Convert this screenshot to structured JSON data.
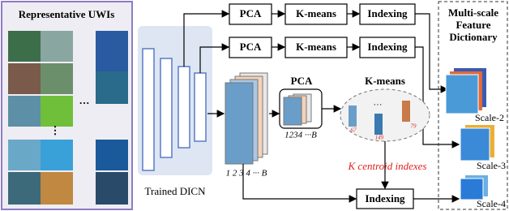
{
  "left_panel": {
    "title": "Representative UWIs",
    "ellipsis_h": "···",
    "ellipsis_v": "⋮"
  },
  "network": {
    "label": "Trained DICN"
  },
  "rows": [
    {
      "steps": [
        "PCA",
        "K-means",
        "Indexing"
      ]
    },
    {
      "steps": [
        "PCA",
        "K-means",
        "Indexing"
      ]
    }
  ],
  "bottom": {
    "pca": "PCA",
    "kmeans": "K-means",
    "indexing": "Indexing",
    "feature_axis": "1 2 3 4 ··· B",
    "pca_axis": "1234 ···B",
    "centroid_note": "K centroid indexes",
    "cluster_dots": "···",
    "cluster_ids": [
      "67",
      "149",
      "79"
    ]
  },
  "dictionary": {
    "title": "Multi-scale Feature Dictionary",
    "scales": [
      "Scale-2",
      "Scale-3",
      "Scale-4"
    ]
  }
}
